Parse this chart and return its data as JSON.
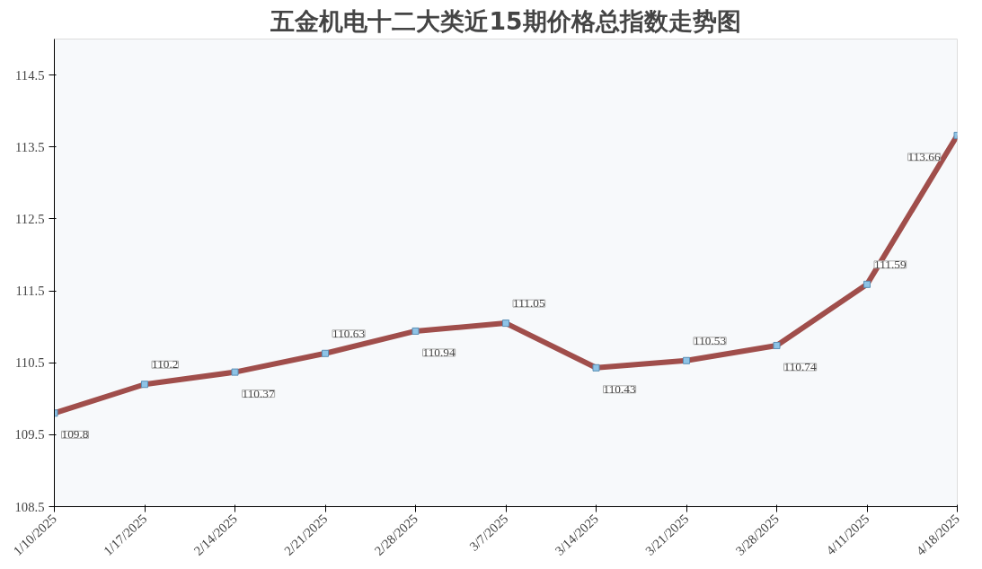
{
  "chart_data": {
    "type": "line",
    "title": "五金机电十二大类近15期价格总指数走势图",
    "categories": [
      "1/10/2025",
      "1/17/2025",
      "2/14/2025",
      "2/21/2025",
      "2/28/2025",
      "3/7/2025",
      "3/14/2025",
      "3/21/2025",
      "3/28/2025",
      "4/11/2025",
      "4/18/2025"
    ],
    "series": [
      {
        "color": "#a04e4b",
        "values": [
          109.8,
          110.2,
          110.37,
          110.63,
          110.94,
          111.05,
          110.43,
          110.53,
          110.74,
          111.59,
          113.66
        ]
      }
    ],
    "ylim": [
      108.5,
      115
    ],
    "yticks": [
      108.5,
      109.5,
      110.5,
      111.5,
      112.5,
      113.5,
      114.5
    ],
    "data_labels": true,
    "marker": "square",
    "line_style": "solid",
    "grid": false
  }
}
